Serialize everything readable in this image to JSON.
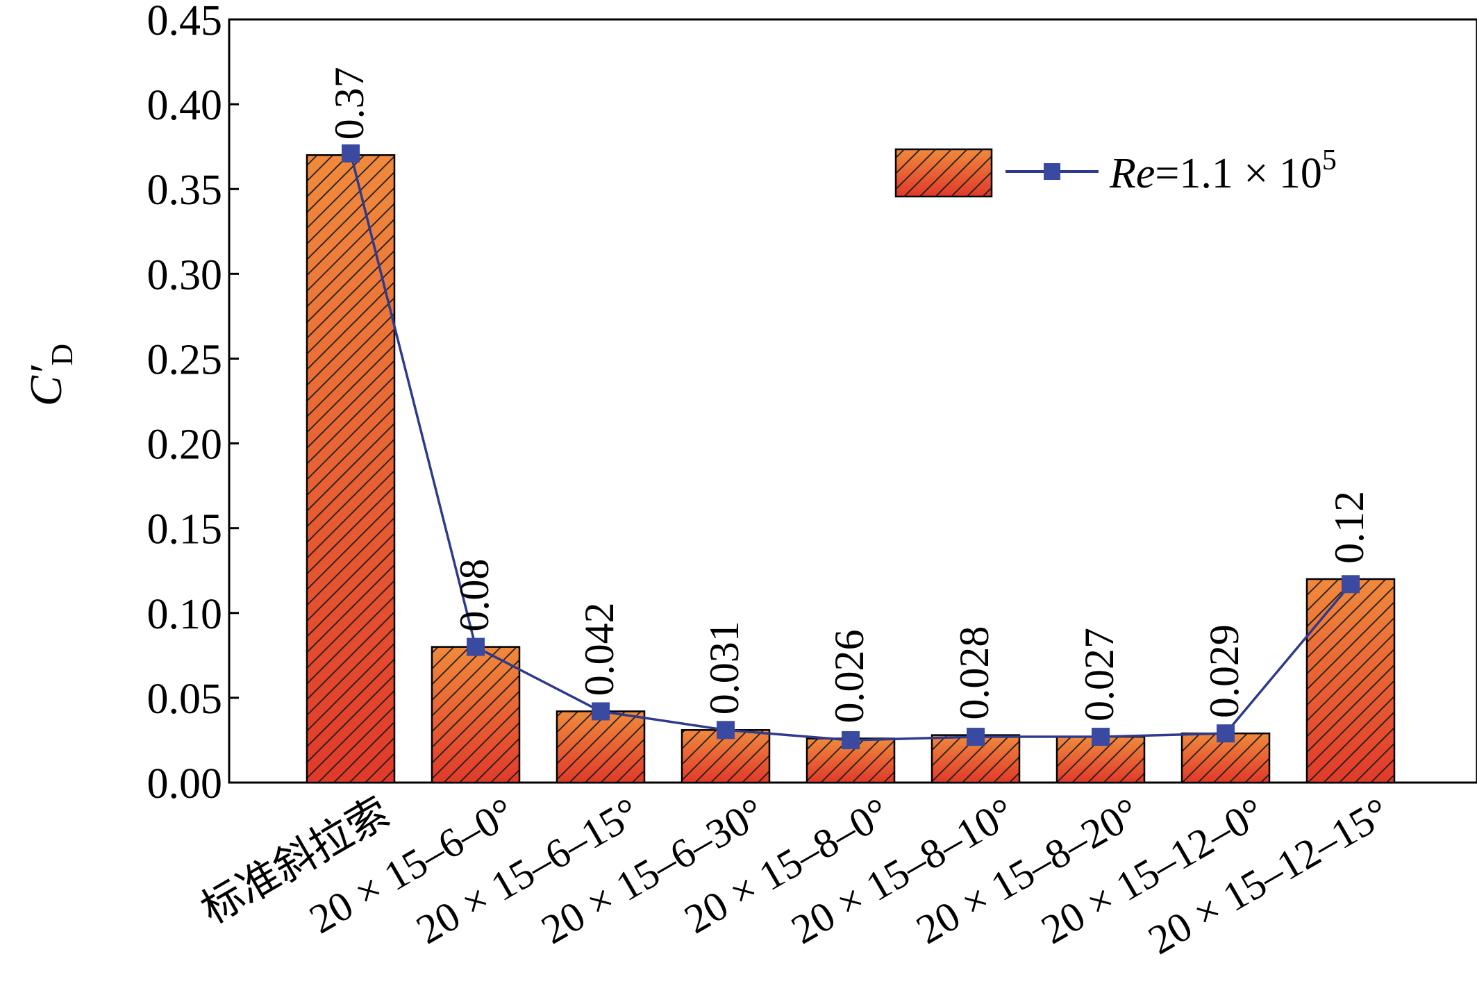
{
  "chart_data": {
    "type": "bar",
    "ylabel": "C′",
    "ylabel_subscript": "D",
    "ylim": [
      0,
      0.45
    ],
    "yticks": [
      "0.00",
      "0.05",
      "0.10",
      "0.15",
      "0.20",
      "0.25",
      "0.30",
      "0.35",
      "0.40",
      "0.45"
    ],
    "categories": [
      "标准斜拉索",
      "20 × 15–6–0°",
      "20 × 15–6–15°",
      "20 × 15–6–30°",
      "20 × 15–8–0°",
      "20 × 15–8–10°",
      "20 × 15–8–20°",
      "20 × 15–12–0°",
      "20 × 15–12–15°"
    ],
    "values": [
      0.37,
      0.08,
      0.042,
      0.031,
      0.026,
      0.028,
      0.027,
      0.029,
      0.12
    ],
    "value_labels": [
      "0.37",
      "0.08",
      "0.042",
      "0.031",
      "0.026",
      "0.028",
      "0.027",
      "0.029",
      "0.12"
    ],
    "line_values": [
      0.371,
      0.08,
      0.042,
      0.031,
      0.025,
      0.027,
      0.027,
      0.029,
      0.117
    ],
    "legend": {
      "position": "top-right",
      "prefix": "Re",
      "text": "=1.1 × 10",
      "superscript": "5"
    },
    "colors": {
      "bar_top": "#f08a3c",
      "bar_bottom": "#e03a2a",
      "hatch": "#1a1a1a",
      "line": "#2e3a8c",
      "marker": "#3a4aa0"
    },
    "grid": false
  }
}
